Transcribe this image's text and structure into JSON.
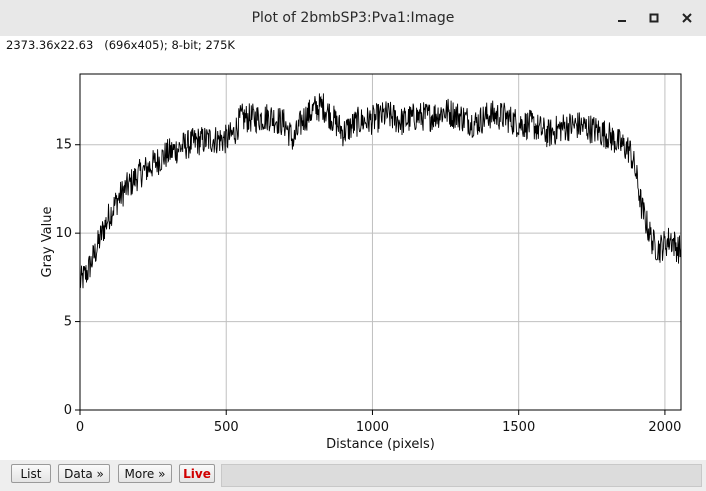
{
  "window": {
    "title": "Plot of 2bmbSP3:Pva1:Image",
    "info": "2373.36x22.63   (696x405); 8-bit; 275K"
  },
  "buttons": {
    "list": "List",
    "data": "Data »",
    "more": "More »",
    "live": "Live"
  },
  "colors": {
    "live": "#d00000",
    "grid": "#c0c0c0",
    "line": "#000000"
  },
  "chart_data": {
    "type": "line",
    "xlabel": "Distance (pixels)",
    "ylabel": "Gray Value",
    "xlim": [
      0,
      2055
    ],
    "ylim": [
      0,
      19
    ],
    "xticks": [
      0,
      500,
      1000,
      1500,
      2000
    ],
    "yticks": [
      0,
      5,
      10,
      15
    ],
    "grid": true,
    "series": [
      {
        "x": [
          0,
          25,
          50,
          75,
          100,
          125,
          150,
          200,
          250,
          300,
          350,
          400,
          450,
          500,
          525,
          550,
          600,
          650,
          700,
          730,
          760,
          800,
          830,
          850,
          900,
          950,
          1000,
          1050,
          1100,
          1150,
          1200,
          1250,
          1300,
          1350,
          1400,
          1450,
          1500,
          1550,
          1600,
          1650,
          1700,
          1750,
          1800,
          1850,
          1880,
          1900,
          1920,
          1940,
          1960,
          1980,
          2000,
          2020,
          2040,
          2055
        ],
        "y": [
          7.2,
          7.8,
          8.8,
          10.0,
          11.0,
          11.8,
          12.4,
          13.3,
          13.9,
          14.5,
          14.9,
          15.2,
          15.3,
          15.3,
          15.6,
          16.5,
          16.5,
          16.6,
          16.2,
          15.2,
          16.4,
          17.0,
          17.2,
          16.8,
          15.7,
          16.3,
          16.4,
          16.7,
          16.3,
          16.6,
          16.6,
          16.9,
          16.6,
          16.2,
          16.7,
          16.6,
          16.2,
          16.1,
          15.6,
          16.0,
          16.1,
          15.9,
          15.6,
          15.0,
          14.7,
          13.5,
          11.5,
          10.4,
          9.4,
          9.1,
          9.4,
          9.7,
          9.2,
          9.0
        ]
      }
    ]
  }
}
